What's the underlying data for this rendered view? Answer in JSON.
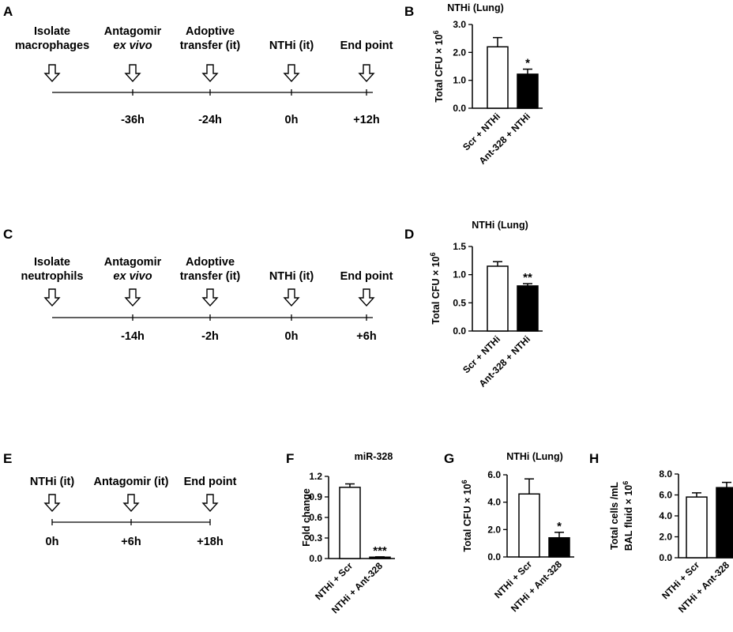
{
  "panels": {
    "A": "A",
    "B": "B",
    "C": "C",
    "D": "D",
    "E": "E",
    "F": "F",
    "G": "G",
    "H": "H"
  },
  "timelines": [
    {
      "id": "A",
      "steps": [
        {
          "line1": "Isolate",
          "line2": "macrophages",
          "line2_italic": false,
          "time": ""
        },
        {
          "line1": "Antagomir",
          "line2": "ex vivo",
          "line2_italic": true,
          "time": "-36h"
        },
        {
          "line1": "Adoptive",
          "line2": "transfer (it)",
          "line2_italic": false,
          "time": "-24h"
        },
        {
          "line1": "",
          "line2": "NTHi (it)",
          "line2_italic": false,
          "time": "0h"
        },
        {
          "line1": "",
          "line2": "End point",
          "line2_italic": false,
          "time": "+12h"
        }
      ]
    },
    {
      "id": "C",
      "steps": [
        {
          "line1": "Isolate",
          "line2": "neutrophils",
          "line2_italic": false,
          "time": ""
        },
        {
          "line1": "Antagomir",
          "line2": "ex vivo",
          "line2_italic": true,
          "time": "-14h"
        },
        {
          "line1": "Adoptive",
          "line2": "transfer (it)",
          "line2_italic": false,
          "time": "-2h"
        },
        {
          "line1": "",
          "line2": "NTHi (it)",
          "line2_italic": false,
          "time": "0h"
        },
        {
          "line1": "",
          "line2": "End point",
          "line2_italic": false,
          "time": "+6h"
        }
      ]
    },
    {
      "id": "E",
      "steps": [
        {
          "line1": "",
          "line2": "NTHi (it)",
          "line2_italic": false,
          "time": "0h"
        },
        {
          "line1": "",
          "line2": "Antagomir (it)",
          "line2_italic": false,
          "time": "+6h"
        },
        {
          "line1": "",
          "line2": "End point",
          "line2_italic": false,
          "time": "+18h"
        }
      ]
    }
  ],
  "chart_data": [
    {
      "panel": "B",
      "type": "bar",
      "title": "NTHi (Lung)",
      "ylabel": "Total CFU × 10",
      "ylabel_sup": "6",
      "ylim": [
        0,
        3.0
      ],
      "yticks": [
        "0.0",
        "1.0",
        "2.0",
        "3.0"
      ],
      "categories": [
        "Scr + NTHi",
        "Ant-328 + NTHi"
      ],
      "values": [
        2.2,
        1.22
      ],
      "errors": [
        0.33,
        0.18
      ],
      "fills": [
        "#ffffff",
        "#000000"
      ],
      "significance": [
        "",
        "*"
      ]
    },
    {
      "panel": "D",
      "type": "bar",
      "title": "NTHi (Lung)",
      "ylabel": "Total CFU × 10",
      "ylabel_sup": "6",
      "ylim": [
        0,
        1.5
      ],
      "yticks": [
        "0.0",
        "0.5",
        "1.0",
        "1.5"
      ],
      "categories": [
        "Scr + NTHi",
        "Ant-328 + NTHi"
      ],
      "values": [
        1.15,
        0.8
      ],
      "errors": [
        0.08,
        0.04
      ],
      "fills": [
        "#ffffff",
        "#000000"
      ],
      "significance": [
        "",
        "**"
      ]
    },
    {
      "panel": "F",
      "type": "bar",
      "title": "miR-328",
      "ylabel": "Fold change",
      "ylabel2": "",
      "ylabel_sup": "",
      "ylim": [
        0,
        1.2
      ],
      "yticks": [
        "0.0",
        "0.3",
        "0.6",
        "0.9",
        "1.2"
      ],
      "categories": [
        "NTHi + Scr",
        "NTHi + Ant-328"
      ],
      "values": [
        1.04,
        0.02
      ],
      "errors": [
        0.05,
        0.005
      ],
      "fills": [
        "#ffffff",
        "#000000"
      ],
      "significance": [
        "",
        "***"
      ]
    },
    {
      "panel": "G",
      "type": "bar",
      "title": "NTHi (Lung)",
      "ylabel": "Total CFU × 10",
      "ylabel_sup": "6",
      "ylim": [
        0,
        6.0
      ],
      "yticks": [
        "0.0",
        "2.0",
        "4.0",
        "6.0"
      ],
      "categories": [
        "NTHi + Scr",
        "NTHi + Ant-328"
      ],
      "values": [
        4.6,
        1.4
      ],
      "errors": [
        1.1,
        0.4
      ],
      "fills": [
        "#ffffff",
        "#000000"
      ],
      "significance": [
        "",
        "*"
      ]
    },
    {
      "panel": "H",
      "type": "bar",
      "title": "",
      "ylabel": "Total cells /mL",
      "ylabel2": "BAL fluid × 10",
      "ylabel_sup": "6",
      "ylim": [
        0,
        8.0
      ],
      "yticks": [
        "0.0",
        "2.0",
        "4.0",
        "6.0",
        "8.0"
      ],
      "categories": [
        "NTHi + Scr",
        "NTHi + Ant-328"
      ],
      "values": [
        5.8,
        6.7
      ],
      "errors": [
        0.4,
        0.5
      ],
      "fills": [
        "#ffffff",
        "#000000"
      ],
      "significance": [
        "",
        ""
      ]
    }
  ]
}
